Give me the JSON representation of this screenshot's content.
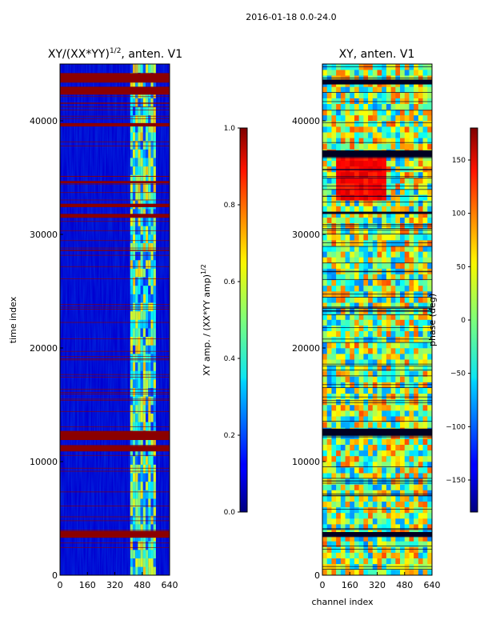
{
  "suptitle": "2016-01-18 0.0-24.0",
  "colors": {
    "background": "#ffffff",
    "band_red": "#8b0000",
    "frame": "#000000"
  },
  "chart_data": [
    {
      "type": "heatmap",
      "title_main": "XY/(XX*YY)",
      "title_exp": "1/2",
      "title_tail": ", anten. V1",
      "ylabel": "time index",
      "xlabel": "",
      "xlim": [
        0,
        640
      ],
      "ylim": [
        0,
        45000
      ],
      "xticks": [
        0,
        160,
        320,
        480,
        640
      ],
      "yticks": [
        0,
        10000,
        20000,
        30000,
        40000
      ],
      "colormap": "jet",
      "colorbar": {
        "label_main": "XY amp. / (XX*YY amp)",
        "label_exp": "1/2",
        "range": [
          0.0,
          1.0
        ],
        "ticks": [
          "0.0",
          "0.2",
          "0.4",
          "0.6",
          "0.8",
          "1.0"
        ]
      },
      "dominant_value": 0.08,
      "bright_channel_range": [
        410,
        560
      ],
      "saturated_time_bands": [
        [
          3300,
          3900
        ],
        [
          10900,
          11400
        ],
        [
          11900,
          12700
        ],
        [
          31500,
          31800
        ],
        [
          32400,
          32700
        ],
        [
          34500,
          34700
        ],
        [
          39500,
          39800
        ],
        [
          42300,
          43000
        ],
        [
          43400,
          44200
        ]
      ]
    },
    {
      "type": "heatmap",
      "title": "XY, anten. V1",
      "ylabel": "",
      "xlabel": "channel index",
      "xlim": [
        0,
        640
      ],
      "ylim": [
        0,
        45000
      ],
      "xticks": [
        0,
        160,
        320,
        480,
        640
      ],
      "yticks": [
        0,
        10000,
        20000,
        30000,
        40000
      ],
      "colormap": "jet",
      "colorbar": {
        "label": "phase (deg)",
        "range": [
          -180,
          180
        ],
        "ticks": [
          "−150",
          "−100",
          "−50",
          "0",
          "50",
          "100",
          "150"
        ]
      },
      "dominant_value_deg": 0,
      "high_phase_region": {
        "channels": [
          80,
          380
        ],
        "time": [
          33000,
          37000
        ],
        "value_deg": 150
      },
      "flagged_time_bands": [
        [
          3400,
          3800
        ],
        [
          12300,
          12900
        ],
        [
          31800,
          32000
        ],
        [
          36800,
          37400
        ],
        [
          43200,
          43600
        ]
      ]
    }
  ]
}
